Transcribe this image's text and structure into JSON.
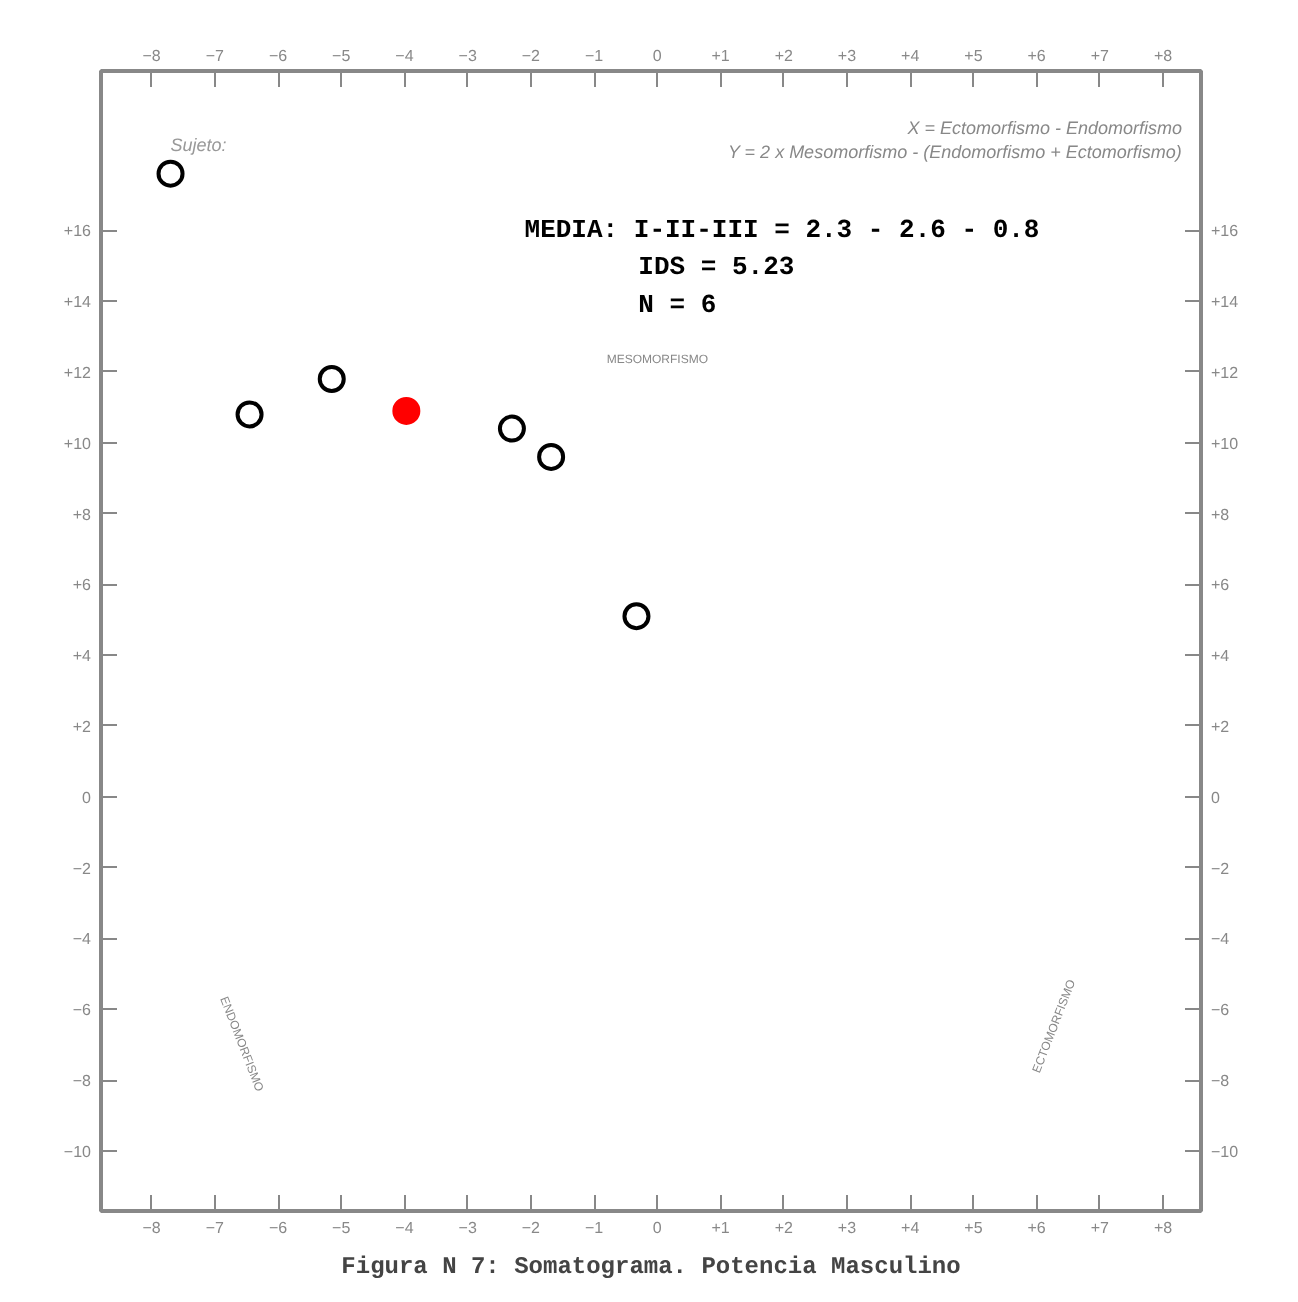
{
  "chart_data": {
    "type": "scatter",
    "title": "Figura N 7: Somatograma. Potencia Masculino",
    "annotations": [
      "Sujeto:",
      "X = Ectomorfismo - Endomorfismo",
      "Y = 2 x Mesomorfismo - (Endomorfismo + Ectomorfismo)",
      "MEDIA: I-II-III = 2.3 - 2.6 - 0.8",
      "IDS = 5.23",
      "N = 6",
      "MESOMORFISMO",
      "ENDOMORFISMO",
      "ECTOMORFISMO"
    ],
    "series": [
      {
        "color": "#000000",
        "x": [
          -7.7,
          -6.45,
          -5.15,
          -2.3,
          -1.68,
          -0.33
        ],
        "values": [
          17.6,
          10.8,
          11.8,
          10.4,
          9.6,
          5.1
        ]
      },
      {
        "color": "#ff0000",
        "x": [
          -3.97
        ],
        "values": [
          10.9
        ]
      }
    ],
    "marker": "circle",
    "xlim": [
      -8.8,
      8.6
    ],
    "ylim": [
      -11.7,
      20.5
    ],
    "x2lim": [
      -8.8,
      8.6
    ],
    "y2lim": [
      -11.7,
      20.5
    ],
    "xticks": [
      -8,
      -7,
      -6,
      -5,
      -4,
      -3,
      -2,
      -1,
      0,
      {
        "value": 1,
        "label": "+1"
      },
      {
        "value": 2,
        "label": "+2"
      },
      {
        "value": 3,
        "label": "+3"
      },
      {
        "value": 4,
        "label": "+4"
      },
      {
        "value": 5,
        "label": "+5"
      },
      {
        "value": 6,
        "label": "+6"
      },
      {
        "value": 7,
        "label": "+7"
      },
      {
        "value": 8,
        "label": "+8"
      }
    ],
    "x2ticks": [
      -8,
      -7,
      -6,
      -5,
      -4,
      -3,
      -2,
      -1,
      0,
      {
        "value": 1,
        "label": "+1"
      },
      {
        "value": 2,
        "label": "+2"
      },
      {
        "value": 3,
        "label": "+3"
      },
      {
        "value": 4,
        "label": "+4"
      },
      {
        "value": 5,
        "label": "+5"
      },
      {
        "value": 6,
        "label": "+6"
      },
      {
        "value": 7,
        "label": "+7"
      },
      {
        "value": 8,
        "label": "+8"
      }
    ],
    "yticks": [
      -10,
      -8,
      -6,
      -4,
      -2,
      0,
      {
        "value": 2,
        "label": "+2"
      },
      {
        "value": 4,
        "label": "+4"
      },
      {
        "value": 6,
        "label": "+6"
      },
      {
        "value": 8,
        "label": "+8"
      },
      {
        "value": 10,
        "label": "+10"
      },
      {
        "value": 12,
        "label": "+12"
      },
      {
        "value": 14,
        "label": "+14"
      },
      {
        "value": 16,
        "label": "+16"
      }
    ],
    "y2ticks": [
      -10,
      -8,
      -6,
      -4,
      -2,
      0,
      {
        "value": 2,
        "label": "+2"
      },
      {
        "value": 4,
        "label": "+4"
      },
      {
        "value": 6,
        "label": "+6"
      },
      {
        "value": 8,
        "label": "+8"
      },
      {
        "value": 10,
        "label": "+10"
      },
      {
        "value": 12,
        "label": "+12"
      },
      {
        "value": 14,
        "label": "+14"
      },
      {
        "value": 16,
        "label": "+16"
      }
    ]
  }
}
